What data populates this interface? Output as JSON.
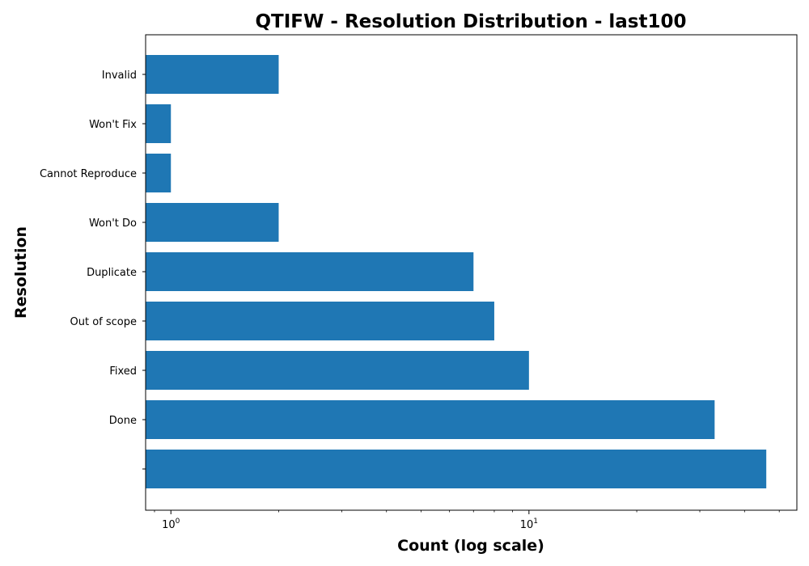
{
  "chart_data": {
    "type": "bar",
    "orientation": "horizontal",
    "title": "QTIFW - Resolution Distribution - last100",
    "xlabel": "Count (log scale)",
    "ylabel": "Resolution",
    "x_scale": "log",
    "xlim": [
      0.85,
      56
    ],
    "x_ticks": [
      {
        "base": "10",
        "exponent": "0",
        "value": 1
      },
      {
        "base": "10",
        "exponent": "1",
        "value": 10
      }
    ],
    "grid": false,
    "categories": [
      "",
      "Done",
      "Fixed",
      "Out of scope",
      "Duplicate",
      "Won't Do",
      "Cannot Reproduce",
      "Won't Fix",
      "Invalid"
    ],
    "values": [
      46,
      33,
      10,
      8,
      7,
      2,
      1,
      1,
      2
    ],
    "bar_color": "#1f77b4"
  }
}
